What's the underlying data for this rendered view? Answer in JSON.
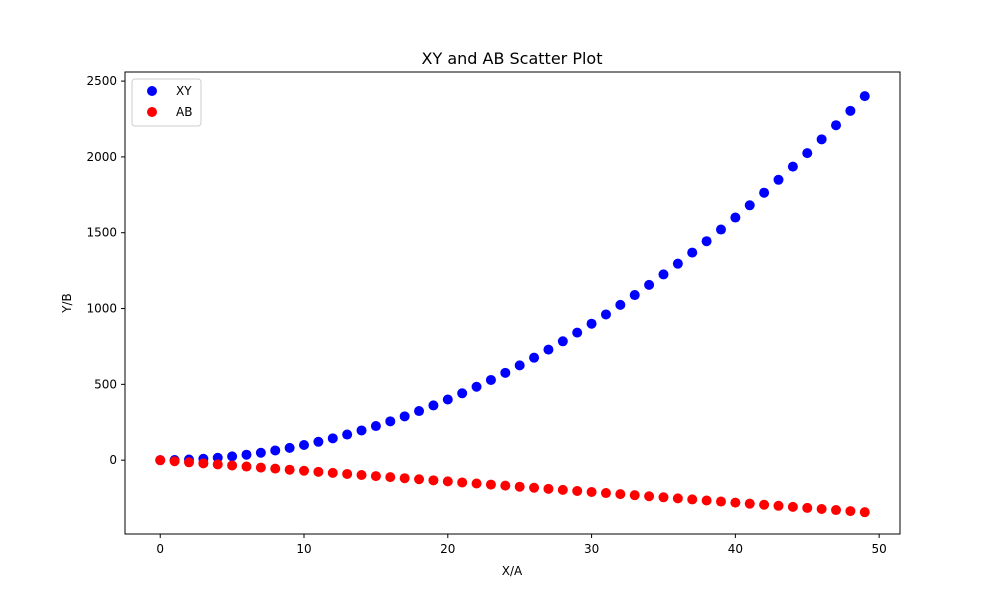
{
  "chart_data": {
    "type": "scatter",
    "title": "XY and AB Scatter Plot",
    "xlabel": "X/A",
    "ylabel": "Y/B",
    "xlim": [
      -2.45,
      51.45
    ],
    "ylim": [
      -487,
      2560
    ],
    "xticks": [
      0,
      10,
      20,
      30,
      40,
      50
    ],
    "yticks": [
      0,
      500,
      1000,
      1500,
      2000,
      2500
    ],
    "grid": false,
    "legend_position": "top-left",
    "series": [
      {
        "name": "XY",
        "color": "#0000ff",
        "x": [
          0,
          1,
          2,
          3,
          4,
          5,
          6,
          7,
          8,
          9,
          10,
          11,
          12,
          13,
          14,
          15,
          16,
          17,
          18,
          19,
          20,
          21,
          22,
          23,
          24,
          25,
          26,
          27,
          28,
          29,
          30,
          31,
          32,
          33,
          34,
          35,
          36,
          37,
          38,
          39,
          40,
          41,
          42,
          43,
          44,
          45,
          46,
          47,
          48,
          49
        ],
        "y": [
          0,
          1,
          4,
          9,
          16,
          25,
          36,
          49,
          64,
          81,
          100,
          121,
          144,
          169,
          196,
          225,
          256,
          289,
          324,
          361,
          400,
          441,
          484,
          529,
          576,
          625,
          676,
          729,
          784,
          841,
          900,
          961,
          1024,
          1089,
          1156,
          1225,
          1296,
          1369,
          1444,
          1521,
          1600,
          1681,
          1764,
          1849,
          1936,
          2025,
          2116,
          2209,
          2304,
          2401
        ]
      },
      {
        "name": "AB",
        "color": "#ff0000",
        "x": [
          0,
          1,
          2,
          3,
          4,
          5,
          6,
          7,
          8,
          9,
          10,
          11,
          12,
          13,
          14,
          15,
          16,
          17,
          18,
          19,
          20,
          21,
          22,
          23,
          24,
          25,
          26,
          27,
          28,
          29,
          30,
          31,
          32,
          33,
          34,
          35,
          36,
          37,
          38,
          39,
          40,
          41,
          42,
          43,
          44,
          45,
          46,
          47,
          48,
          49
        ],
        "y": [
          0,
          -7,
          -14,
          -21,
          -28,
          -35,
          -42,
          -49,
          -56,
          -63,
          -70,
          -77,
          -84,
          -91,
          -98,
          -105,
          -112,
          -119,
          -126,
          -133,
          -140,
          -147,
          -154,
          -161,
          -168,
          -175,
          -182,
          -189,
          -196,
          -203,
          -210,
          -217,
          -224,
          -231,
          -238,
          -245,
          -252,
          -259,
          -266,
          -273,
          -280,
          -287,
          -294,
          -301,
          -308,
          -315,
          -322,
          -329,
          -336,
          -343
        ]
      }
    ]
  }
}
